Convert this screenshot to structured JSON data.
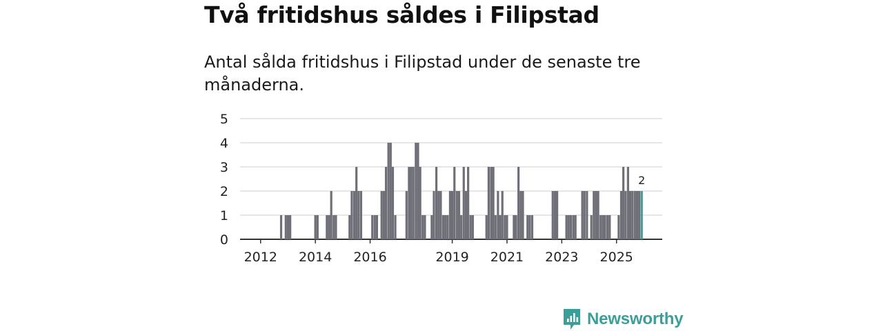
{
  "title": "Två fritidshus såldes i Filipstad",
  "subtitle": "Antal sålda fritidshus i Filipstad under de senaste tre månaderna.",
  "brand": {
    "name": "Newsworthy",
    "color": "#3a9f98"
  },
  "chart_data": {
    "type": "bar",
    "ylim": [
      0,
      5
    ],
    "yticks": [
      0,
      1,
      2,
      3,
      4,
      5
    ],
    "xlim": [
      2011.25,
      2026.67
    ],
    "xticks": [
      {
        "value": 2012,
        "label": "2012"
      },
      {
        "value": 2014,
        "label": "2014"
      },
      {
        "value": 2016,
        "label": "2016"
      },
      {
        "value": 2019,
        "label": "2019"
      },
      {
        "value": 2021,
        "label": "2021"
      },
      {
        "value": 2023,
        "label": "2023"
      },
      {
        "value": 2025,
        "label": "2025"
      }
    ],
    "bar_color": "#6f6f78",
    "highlight_color": "#3a9f98",
    "grid": true,
    "series": [
      {
        "name": "Antal sålda fritidshus",
        "points": [
          [
            2012.75,
            1
          ],
          [
            2012.92,
            1
          ],
          [
            2013.0,
            1
          ],
          [
            2013.08,
            1
          ],
          [
            2014.0,
            1
          ],
          [
            2014.08,
            1
          ],
          [
            2014.42,
            1
          ],
          [
            2014.5,
            1
          ],
          [
            2014.58,
            2
          ],
          [
            2014.67,
            1
          ],
          [
            2014.75,
            1
          ],
          [
            2015.25,
            1
          ],
          [
            2015.33,
            2
          ],
          [
            2015.42,
            2
          ],
          [
            2015.5,
            3
          ],
          [
            2015.58,
            2
          ],
          [
            2015.67,
            2
          ],
          [
            2016.08,
            1
          ],
          [
            2016.17,
            1
          ],
          [
            2016.25,
            1
          ],
          [
            2016.42,
            2
          ],
          [
            2016.5,
            2
          ],
          [
            2016.58,
            3
          ],
          [
            2016.67,
            4
          ],
          [
            2016.75,
            4
          ],
          [
            2016.83,
            3
          ],
          [
            2016.92,
            1
          ],
          [
            2017.33,
            2
          ],
          [
            2017.42,
            3
          ],
          [
            2017.5,
            3
          ],
          [
            2017.58,
            3
          ],
          [
            2017.67,
            4
          ],
          [
            2017.75,
            4
          ],
          [
            2017.83,
            3
          ],
          [
            2017.92,
            1
          ],
          [
            2018.0,
            1
          ],
          [
            2018.25,
            1
          ],
          [
            2018.33,
            2
          ],
          [
            2018.42,
            3
          ],
          [
            2018.5,
            2
          ],
          [
            2018.58,
            2
          ],
          [
            2018.67,
            1
          ],
          [
            2018.75,
            1
          ],
          [
            2018.83,
            1
          ],
          [
            2018.92,
            2
          ],
          [
            2019.0,
            2
          ],
          [
            2019.08,
            3
          ],
          [
            2019.17,
            2
          ],
          [
            2019.25,
            2
          ],
          [
            2019.33,
            1
          ],
          [
            2019.42,
            3
          ],
          [
            2019.5,
            2
          ],
          [
            2019.58,
            3
          ],
          [
            2019.67,
            1
          ],
          [
            2019.75,
            1
          ],
          [
            2020.25,
            1
          ],
          [
            2020.33,
            3
          ],
          [
            2020.42,
            3
          ],
          [
            2020.5,
            3
          ],
          [
            2020.58,
            1
          ],
          [
            2020.67,
            2
          ],
          [
            2020.75,
            1
          ],
          [
            2020.83,
            2
          ],
          [
            2020.92,
            1
          ],
          [
            2021.0,
            1
          ],
          [
            2021.25,
            1
          ],
          [
            2021.33,
            1
          ],
          [
            2021.42,
            3
          ],
          [
            2021.5,
            2
          ],
          [
            2021.58,
            2
          ],
          [
            2021.75,
            1
          ],
          [
            2021.83,
            1
          ],
          [
            2021.92,
            1
          ],
          [
            2022.67,
            2
          ],
          [
            2022.75,
            2
          ],
          [
            2022.83,
            2
          ],
          [
            2023.17,
            1
          ],
          [
            2023.25,
            1
          ],
          [
            2023.33,
            1
          ],
          [
            2023.42,
            1
          ],
          [
            2023.5,
            1
          ],
          [
            2023.75,
            2
          ],
          [
            2023.83,
            2
          ],
          [
            2023.92,
            2
          ],
          [
            2024.08,
            1
          ],
          [
            2024.17,
            2
          ],
          [
            2024.25,
            2
          ],
          [
            2024.33,
            2
          ],
          [
            2024.42,
            1
          ],
          [
            2024.5,
            1
          ],
          [
            2024.58,
            1
          ],
          [
            2024.67,
            1
          ],
          [
            2024.75,
            1
          ],
          [
            2025.08,
            1
          ],
          [
            2025.17,
            2
          ],
          [
            2025.25,
            3
          ],
          [
            2025.33,
            2
          ],
          [
            2025.42,
            3
          ],
          [
            2025.5,
            2
          ],
          [
            2025.58,
            2
          ],
          [
            2025.67,
            2
          ],
          [
            2025.75,
            2
          ],
          [
            2025.83,
            2
          ],
          [
            2025.92,
            2
          ]
        ]
      }
    ],
    "annotation": {
      "x": 2025.92,
      "value": 2,
      "label": "2"
    }
  }
}
